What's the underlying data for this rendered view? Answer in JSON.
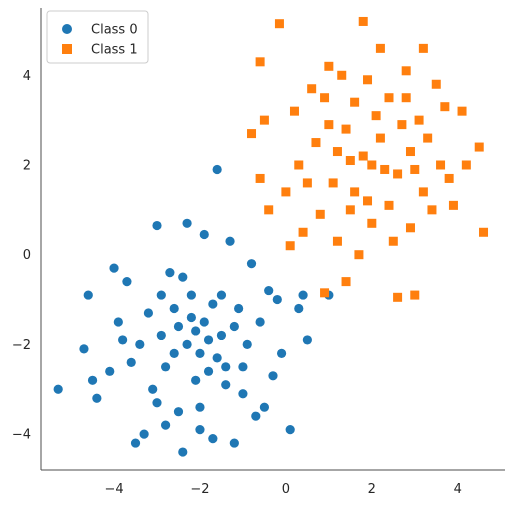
{
  "chart_data": {
    "type": "scatter",
    "title": "",
    "xlabel": "",
    "ylabel": "",
    "xlim": [
      -5.7,
      5.1
    ],
    "ylim": [
      -4.8,
      5.5
    ],
    "x_ticks": [
      -4,
      -2,
      0,
      2,
      4
    ],
    "y_ticks": [
      -4,
      -2,
      0,
      2,
      4
    ],
    "tick_labels_x": [
      "−4",
      "−2",
      "0",
      "2",
      "4"
    ],
    "tick_labels_y": [
      "−4",
      "−2",
      "0",
      "2",
      "4"
    ],
    "grid": false,
    "legend_position": "top-left",
    "series": [
      {
        "name": "Class 0",
        "marker": "circle",
        "color": "#1f77b4",
        "points": [
          [
            -5.3,
            -3.0
          ],
          [
            -4.7,
            -2.1
          ],
          [
            -4.6,
            -0.9
          ],
          [
            -4.5,
            -2.8
          ],
          [
            -4.4,
            -3.2
          ],
          [
            -4.0,
            -0.3
          ],
          [
            -3.9,
            -1.5
          ],
          [
            -3.7,
            -0.6
          ],
          [
            -3.6,
            -2.4
          ],
          [
            -3.5,
            -4.2
          ],
          [
            -3.3,
            -4.0
          ],
          [
            -3.1,
            -3.0
          ],
          [
            -3.0,
            0.65
          ],
          [
            -2.9,
            -1.8
          ],
          [
            -2.8,
            -3.8
          ],
          [
            -2.7,
            -0.4
          ],
          [
            -2.6,
            -2.2
          ],
          [
            -2.5,
            -3.5
          ],
          [
            -2.4,
            -4.4
          ],
          [
            -2.3,
            0.7
          ],
          [
            -2.2,
            -1.4
          ],
          [
            -2.1,
            -2.8
          ],
          [
            -2.0,
            -3.4
          ],
          [
            -1.9,
            0.45
          ],
          [
            -1.8,
            -1.9
          ],
          [
            -1.7,
            -4.1
          ],
          [
            -1.6,
            1.9
          ],
          [
            -1.5,
            -0.9
          ],
          [
            -1.4,
            -2.5
          ],
          [
            -1.3,
            0.3
          ],
          [
            -1.2,
            -4.2
          ],
          [
            -1.1,
            -1.2
          ],
          [
            -1.0,
            -3.1
          ],
          [
            -0.9,
            -2.0
          ],
          [
            -0.8,
            -0.2
          ],
          [
            -0.7,
            -3.6
          ],
          [
            -0.6,
            -1.5
          ],
          [
            -0.5,
            -3.4
          ],
          [
            -0.4,
            -0.8
          ],
          [
            -0.3,
            -2.7
          ],
          [
            -0.2,
            -1.0
          ],
          [
            -0.1,
            -2.2
          ],
          [
            0.1,
            -3.9
          ],
          [
            0.3,
            -1.2
          ],
          [
            0.4,
            -0.9
          ],
          [
            0.5,
            -1.9
          ],
          [
            1.0,
            -0.9
          ],
          [
            -2.4,
            -0.5
          ],
          [
            -2.6,
            -1.2
          ],
          [
            -2.2,
            -0.9
          ],
          [
            -2.0,
            -2.2
          ],
          [
            -1.9,
            -1.5
          ],
          [
            -1.8,
            -2.6
          ],
          [
            -2.1,
            -1.7
          ],
          [
            -2.3,
            -2.0
          ],
          [
            -1.7,
            -1.1
          ],
          [
            -1.6,
            -2.3
          ],
          [
            -2.5,
            -1.6
          ],
          [
            -1.5,
            -1.8
          ],
          [
            -2.8,
            -2.5
          ],
          [
            -3.2,
            -1.3
          ],
          [
            -3.4,
            -2.0
          ],
          [
            -1.2,
            -1.6
          ],
          [
            -1.4,
            -2.9
          ],
          [
            -2.9,
            -0.9
          ],
          [
            -3.8,
            -1.9
          ],
          [
            -4.1,
            -2.6
          ],
          [
            -3.0,
            -3.3
          ],
          [
            -2.0,
            -3.9
          ],
          [
            -1.0,
            -2.5
          ]
        ]
      },
      {
        "name": "Class 1",
        "marker": "square",
        "color": "#ff7f0e",
        "points": [
          [
            -0.6,
            4.3
          ],
          [
            -0.15,
            5.15
          ],
          [
            1.8,
            5.2
          ],
          [
            2.2,
            4.6
          ],
          [
            3.2,
            4.6
          ],
          [
            3.5,
            3.8
          ],
          [
            4.1,
            3.2
          ],
          [
            4.5,
            2.4
          ],
          [
            4.6,
            0.5
          ],
          [
            3.9,
            1.1
          ],
          [
            3.0,
            -0.9
          ],
          [
            2.6,
            -0.95
          ],
          [
            1.4,
            -0.6
          ],
          [
            0.9,
            -0.85
          ],
          [
            -0.4,
            1.0
          ],
          [
            -0.6,
            1.7
          ],
          [
            -0.8,
            2.7
          ],
          [
            -0.5,
            3.0
          ],
          [
            0.2,
            3.2
          ],
          [
            0.6,
            3.7
          ],
          [
            1.0,
            4.2
          ],
          [
            1.3,
            4.0
          ],
          [
            1.6,
            3.4
          ],
          [
            1.9,
            3.9
          ],
          [
            2.4,
            3.5
          ],
          [
            2.8,
            4.1
          ],
          [
            3.1,
            3.0
          ],
          [
            3.3,
            2.6
          ],
          [
            3.6,
            2.0
          ],
          [
            3.8,
            1.7
          ],
          [
            3.4,
            1.0
          ],
          [
            2.9,
            0.6
          ],
          [
            2.5,
            0.3
          ],
          [
            2.0,
            0.7
          ],
          [
            1.7,
            0.0
          ],
          [
            1.2,
            0.3
          ],
          [
            0.8,
            0.9
          ],
          [
            0.4,
            0.5
          ],
          [
            0.0,
            1.4
          ],
          [
            0.3,
            2.0
          ],
          [
            0.7,
            2.5
          ],
          [
            1.1,
            1.6
          ],
          [
            1.5,
            2.1
          ],
          [
            1.9,
            1.2
          ],
          [
            2.2,
            2.6
          ],
          [
            2.6,
            1.8
          ],
          [
            2.9,
            2.3
          ],
          [
            3.2,
            1.4
          ],
          [
            1.4,
            2.8
          ],
          [
            1.8,
            2.2
          ],
          [
            2.3,
            1.9
          ],
          [
            2.7,
            2.9
          ],
          [
            1.0,
            2.9
          ],
          [
            0.5,
            1.6
          ],
          [
            2.1,
            3.1
          ],
          [
            1.6,
            1.4
          ],
          [
            2.4,
            1.1
          ],
          [
            3.0,
            1.9
          ],
          [
            1.2,
            2.3
          ],
          [
            2.0,
            2.0
          ],
          [
            0.9,
            3.5
          ],
          [
            3.7,
            3.3
          ],
          [
            4.2,
            2.0
          ],
          [
            0.1,
            0.2
          ],
          [
            1.5,
            1.0
          ],
          [
            2.8,
            3.5
          ]
        ]
      }
    ]
  }
}
